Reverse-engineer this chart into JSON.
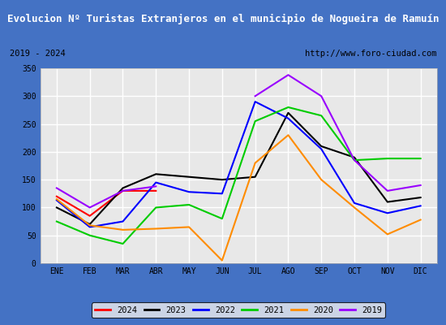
{
  "title": "Evolucion Nº Turistas Extranjeros en el municipio de Nogueira de Ramuín",
  "subtitle_left": "2019 - 2024",
  "subtitle_right": "http://www.foro-ciudad.com",
  "title_bg": "#4472c4",
  "title_color": "#ffffff",
  "x_labels": [
    "ENE",
    "FEB",
    "MAR",
    "ABR",
    "MAY",
    "JUN",
    "JUL",
    "AGO",
    "SEP",
    "OCT",
    "NOV",
    "DIC"
  ],
  "ylim": [
    0,
    350
  ],
  "yticks": [
    0,
    50,
    100,
    150,
    200,
    250,
    300,
    350
  ],
  "series": {
    "2024": {
      "color": "#ff0000",
      "data": [
        120,
        85,
        130,
        130,
        null,
        null,
        null,
        null,
        null,
        null,
        null,
        null
      ]
    },
    "2023": {
      "color": "#000000",
      "data": [
        100,
        70,
        135,
        160,
        155,
        150,
        155,
        270,
        210,
        190,
        110,
        118
      ]
    },
    "2022": {
      "color": "#0000ff",
      "data": [
        113,
        65,
        75,
        145,
        128,
        125,
        290,
        260,
        205,
        108,
        90,
        103
      ]
    },
    "2021": {
      "color": "#00cc00",
      "data": [
        75,
        50,
        35,
        100,
        105,
        80,
        255,
        280,
        265,
        185,
        188,
        188
      ]
    },
    "2020": {
      "color": "#ff8c00",
      "data": [
        115,
        68,
        60,
        62,
        65,
        5,
        180,
        230,
        150,
        100,
        52,
        78
      ]
    },
    "2019": {
      "color": "#9900ff",
      "data": [
        135,
        100,
        130,
        138,
        null,
        null,
        300,
        338,
        300,
        185,
        130,
        140
      ]
    }
  },
  "legend_order": [
    "2024",
    "2023",
    "2022",
    "2021",
    "2020",
    "2019"
  ],
  "bg_color": "#eeeeee",
  "plot_bg": "#e8e8e8",
  "grid_color": "#ffffff",
  "border_color": "#4472c4"
}
